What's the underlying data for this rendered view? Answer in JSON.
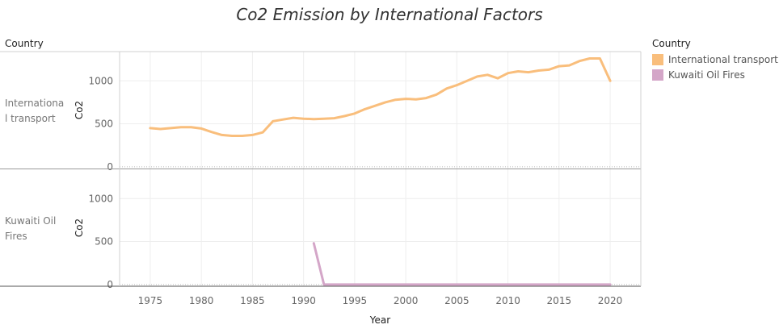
{
  "chart_data": {
    "type": "line",
    "title": "Co2 Emission by International Factors",
    "row_header": "Country",
    "xlabel": "Year",
    "ylabel": "Co2",
    "xlim": [
      1972,
      2023
    ],
    "ylim": [
      -20,
      1340
    ],
    "x_ticks": [
      1975,
      1980,
      1985,
      1990,
      1995,
      2000,
      2005,
      2010,
      2015,
      2020
    ],
    "y_ticks": [
      0,
      500,
      1000
    ],
    "legend": {
      "title": "Country",
      "placement": "right",
      "items": [
        {
          "name": "International transport",
          "color": "#F9BE7C"
        },
        {
          "name": "Kuwaiti Oil Fires",
          "color": "#D4A6C8"
        }
      ]
    },
    "panels": [
      {
        "label_lines": [
          "Internationa",
          "l transport"
        ],
        "series": {
          "name": "International transport",
          "color": "#F9BE7C",
          "x": [
            1975,
            1976,
            1977,
            1978,
            1979,
            1980,
            1981,
            1982,
            1983,
            1984,
            1985,
            1986,
            1987,
            1988,
            1989,
            1990,
            1991,
            1992,
            1993,
            1994,
            1995,
            1996,
            1997,
            1998,
            1999,
            2000,
            2001,
            2002,
            2003,
            2004,
            2005,
            2006,
            2007,
            2008,
            2009,
            2010,
            2011,
            2012,
            2013,
            2014,
            2015,
            2016,
            2017,
            2018,
            2019,
            2020
          ],
          "y": [
            450,
            440,
            450,
            460,
            460,
            445,
            405,
            370,
            360,
            360,
            370,
            400,
            530,
            550,
            570,
            560,
            555,
            560,
            565,
            590,
            620,
            670,
            710,
            750,
            780,
            790,
            785,
            800,
            840,
            910,
            950,
            1000,
            1050,
            1070,
            1030,
            1090,
            1110,
            1100,
            1120,
            1130,
            1170,
            1180,
            1230,
            1260,
            1260,
            1000
          ]
        }
      },
      {
        "label_lines": [
          "Kuwaiti Oil",
          "Fires"
        ],
        "series": {
          "name": "Kuwaiti Oil Fires",
          "color": "#D4A6C8",
          "x": [
            1991,
            1992,
            1993,
            1994,
            1995,
            1996,
            1997,
            1998,
            1999,
            2000,
            2001,
            2002,
            2003,
            2004,
            2005,
            2006,
            2007,
            2008,
            2009,
            2010,
            2011,
            2012,
            2013,
            2014,
            2015,
            2016,
            2017,
            2018,
            2019,
            2020
          ],
          "y": [
            480,
            0,
            0,
            0,
            0,
            0,
            0,
            0,
            0,
            0,
            0,
            0,
            0,
            0,
            0,
            0,
            0,
            0,
            0,
            0,
            0,
            0,
            0,
            0,
            0,
            0,
            0,
            0,
            0,
            0
          ]
        }
      }
    ]
  }
}
